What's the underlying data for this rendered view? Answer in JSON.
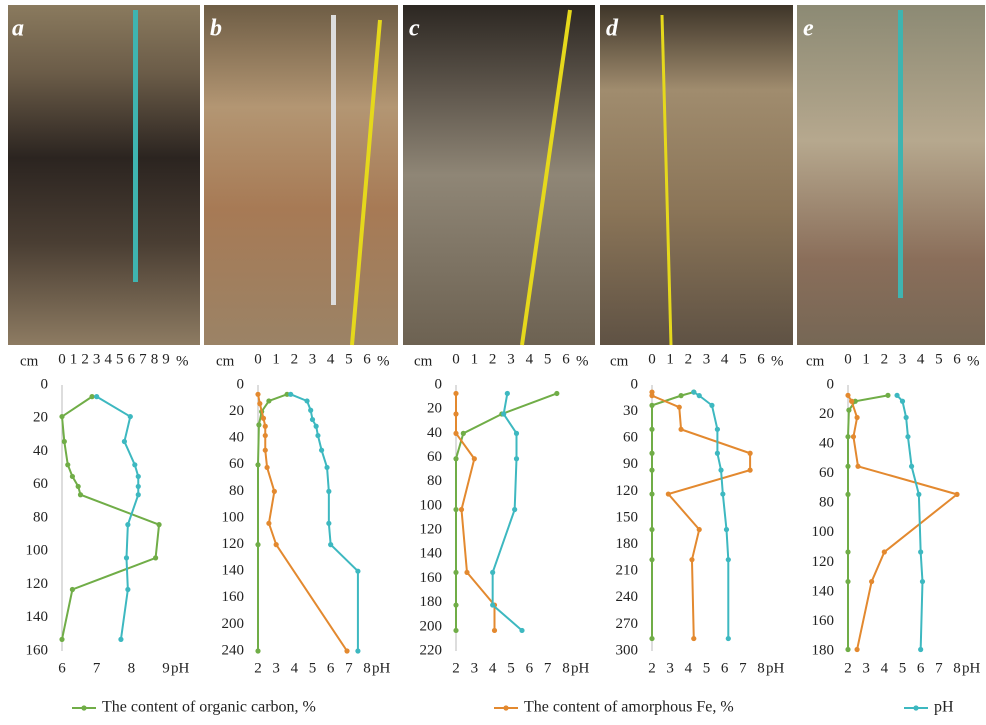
{
  "chart_data": [
    {
      "type": "line",
      "label": "a",
      "y_label": "cm",
      "x_label": "%",
      "x2_label": "pH",
      "xlim": [
        0,
        9
      ],
      "xticks": [
        0,
        1,
        2,
        3,
        4,
        5,
        6,
        7,
        8,
        9
      ],
      "x2lim": [
        6,
        9
      ],
      "x2ticks": [
        6,
        7,
        8,
        9
      ],
      "ylim": [
        0,
        160
      ],
      "yticks": [
        0,
        20,
        40,
        60,
        80,
        100,
        120,
        140,
        160
      ],
      "series": [
        {
          "color": "#70ad47",
          "depth": [
            7,
            19,
            34,
            48,
            55,
            61,
            66,
            84,
            104,
            123,
            153
          ],
          "values": [
            2.6,
            0,
            0.2,
            0.5,
            0.9,
            1.4,
            1.6,
            8.4,
            8.1,
            0.9,
            0
          ]
        },
        {
          "color": "#3db8c0",
          "axis": "x2",
          "depth": [
            7,
            19,
            34,
            48,
            55,
            61,
            66,
            84,
            104,
            123,
            153
          ],
          "values": [
            7.0,
            7.97,
            7.8,
            8.1,
            8.2,
            8.2,
            8.2,
            7.9,
            7.86,
            7.9,
            7.7
          ]
        }
      ]
    },
    {
      "type": "line",
      "label": "b",
      "y_label": "cm",
      "x_label": "%",
      "x2_label": "pH",
      "xlim": [
        0,
        6
      ],
      "xticks": [
        0,
        1,
        2,
        3,
        4,
        5,
        6
      ],
      "x2lim": [
        2,
        8
      ],
      "x2ticks": [
        2,
        3,
        4,
        5,
        6,
        7,
        8
      ],
      "ylim": [
        0,
        240
      ],
      "yticks": [
        0,
        20,
        40,
        60,
        80,
        100,
        120,
        140,
        160,
        200,
        240
      ],
      "series": [
        {
          "color": "#70ad47",
          "depth": [
            7,
            12,
            20,
            30,
            60,
            120,
            240
          ],
          "values": [
            1.6,
            0.6,
            0.2,
            0.05,
            0,
            0,
            0
          ]
        },
        {
          "color": "#e3892f",
          "depth": [
            7,
            14,
            25,
            31,
            38,
            49,
            62,
            80,
            104,
            120,
            240
          ],
          "values": [
            0,
            0.1,
            0.3,
            0.4,
            0.4,
            0.4,
            0.5,
            0.9,
            0.6,
            1.0,
            4.9
          ]
        },
        {
          "color": "#3db8c0",
          "axis": "x2",
          "depth": [
            7,
            12,
            19,
            26,
            31,
            38,
            49,
            62,
            80,
            104,
            120,
            140,
            240
          ],
          "values": [
            3.8,
            4.7,
            4.9,
            5.0,
            5.2,
            5.3,
            5.5,
            5.8,
            5.9,
            5.9,
            6.0,
            7.5,
            7.5
          ]
        }
      ]
    },
    {
      "type": "line",
      "label": "c",
      "y_label": "cm",
      "x_label": "%",
      "x2_label": "pH",
      "xlim": [
        0,
        6
      ],
      "xticks": [
        0,
        1,
        2,
        3,
        4,
        5,
        6
      ],
      "x2lim": [
        2,
        8
      ],
      "x2ticks": [
        2,
        3,
        4,
        5,
        6,
        7,
        8
      ],
      "ylim": [
        0,
        220
      ],
      "yticks": [
        0,
        20,
        40,
        60,
        80,
        100,
        120,
        140,
        160,
        180,
        200,
        220
      ],
      "series": [
        {
          "color": "#70ad47",
          "depth": [
            7,
            24,
            40,
            61,
            103,
            155,
            182,
            203
          ],
          "values": [
            5.5,
            2.5,
            0.4,
            0,
            0,
            0,
            0,
            0
          ]
        },
        {
          "color": "#e3892f",
          "depth": [
            7,
            24,
            40,
            61,
            103,
            155,
            182,
            203
          ],
          "values": [
            0,
            0,
            0,
            1.0,
            0.3,
            0.6,
            2.1,
            2.1
          ]
        },
        {
          "color": "#3db8c0",
          "axis": "x2",
          "depth": [
            7,
            24,
            40,
            61,
            103,
            155,
            182,
            203
          ],
          "values": [
            4.8,
            4.6,
            5.3,
            5.3,
            5.2,
            4.0,
            4.0,
            5.6
          ]
        }
      ]
    },
    {
      "type": "line",
      "label": "d",
      "y_label": "cm",
      "x_label": "%",
      "x2_label": "pH",
      "xlim": [
        0,
        6
      ],
      "xticks": [
        0,
        1,
        2,
        3,
        4,
        5,
        6
      ],
      "x2lim": [
        2,
        8
      ],
      "x2ticks": [
        2,
        3,
        4,
        5,
        6,
        7,
        8
      ],
      "ylim": [
        0,
        300
      ],
      "yticks": [
        0,
        30,
        60,
        90,
        120,
        150,
        180,
        210,
        240,
        270,
        300
      ],
      "series": [
        {
          "color": "#70ad47",
          "depth": [
            8,
            12,
            23,
            50,
            77,
            96,
            123,
            163,
            197,
            286
          ],
          "values": [
            2.3,
            1.6,
            0,
            0,
            0,
            0,
            0,
            0,
            0,
            0
          ]
        },
        {
          "color": "#e3892f",
          "depth": [
            8,
            12,
            25,
            50,
            77,
            96,
            123,
            163,
            197,
            286
          ],
          "values": [
            0,
            0,
            1.5,
            1.6,
            5.4,
            5.4,
            0.9,
            2.6,
            2.2,
            2.3
          ]
        },
        {
          "color": "#3db8c0",
          "axis": "x2",
          "depth": [
            8,
            12,
            23,
            50,
            77,
            96,
            123,
            163,
            197,
            286
          ],
          "values": [
            4.3,
            4.6,
            5.3,
            5.6,
            5.6,
            5.8,
            5.9,
            6.1,
            6.2,
            6.2
          ]
        }
      ]
    },
    {
      "type": "line",
      "label": "e",
      "y_label": "cm",
      "x_label": "%",
      "x2_label": "pH",
      "xlim": [
        0,
        6
      ],
      "xticks": [
        0,
        1,
        2,
        3,
        4,
        5,
        6
      ],
      "x2lim": [
        2,
        8
      ],
      "x2ticks": [
        2,
        3,
        4,
        5,
        6,
        7,
        8
      ],
      "ylim": [
        0,
        180
      ],
      "yticks": [
        0,
        20,
        40,
        60,
        80,
        100,
        120,
        140,
        160,
        180
      ],
      "series": [
        {
          "color": "#70ad47",
          "depth": [
            7,
            11,
            17,
            35,
            55,
            74,
            113,
            133,
            179
          ],
          "values": [
            2.2,
            0.4,
            0.05,
            0,
            0,
            0,
            0,
            0,
            0
          ]
        },
        {
          "color": "#e3892f",
          "depth": [
            7,
            11,
            22,
            35,
            55,
            74,
            113,
            133,
            179
          ],
          "values": [
            0,
            0.2,
            0.5,
            0.3,
            0.55,
            6.0,
            2.0,
            1.3,
            0.5
          ]
        },
        {
          "color": "#3db8c0",
          "axis": "x2",
          "depth": [
            7,
            11,
            22,
            35,
            55,
            74,
            113,
            133,
            179
          ],
          "values": [
            4.7,
            5.0,
            5.2,
            5.3,
            5.5,
            5.9,
            6.0,
            6.1,
            6.0
          ]
        }
      ]
    }
  ],
  "legend": [
    {
      "name": "The content of organic carbon, %",
      "color": "#70ad47"
    },
    {
      "name": "The content of amorphous Fe, %",
      "color": "#e3892f"
    },
    {
      "name": "pH",
      "color": "#3db8c0"
    }
  ]
}
